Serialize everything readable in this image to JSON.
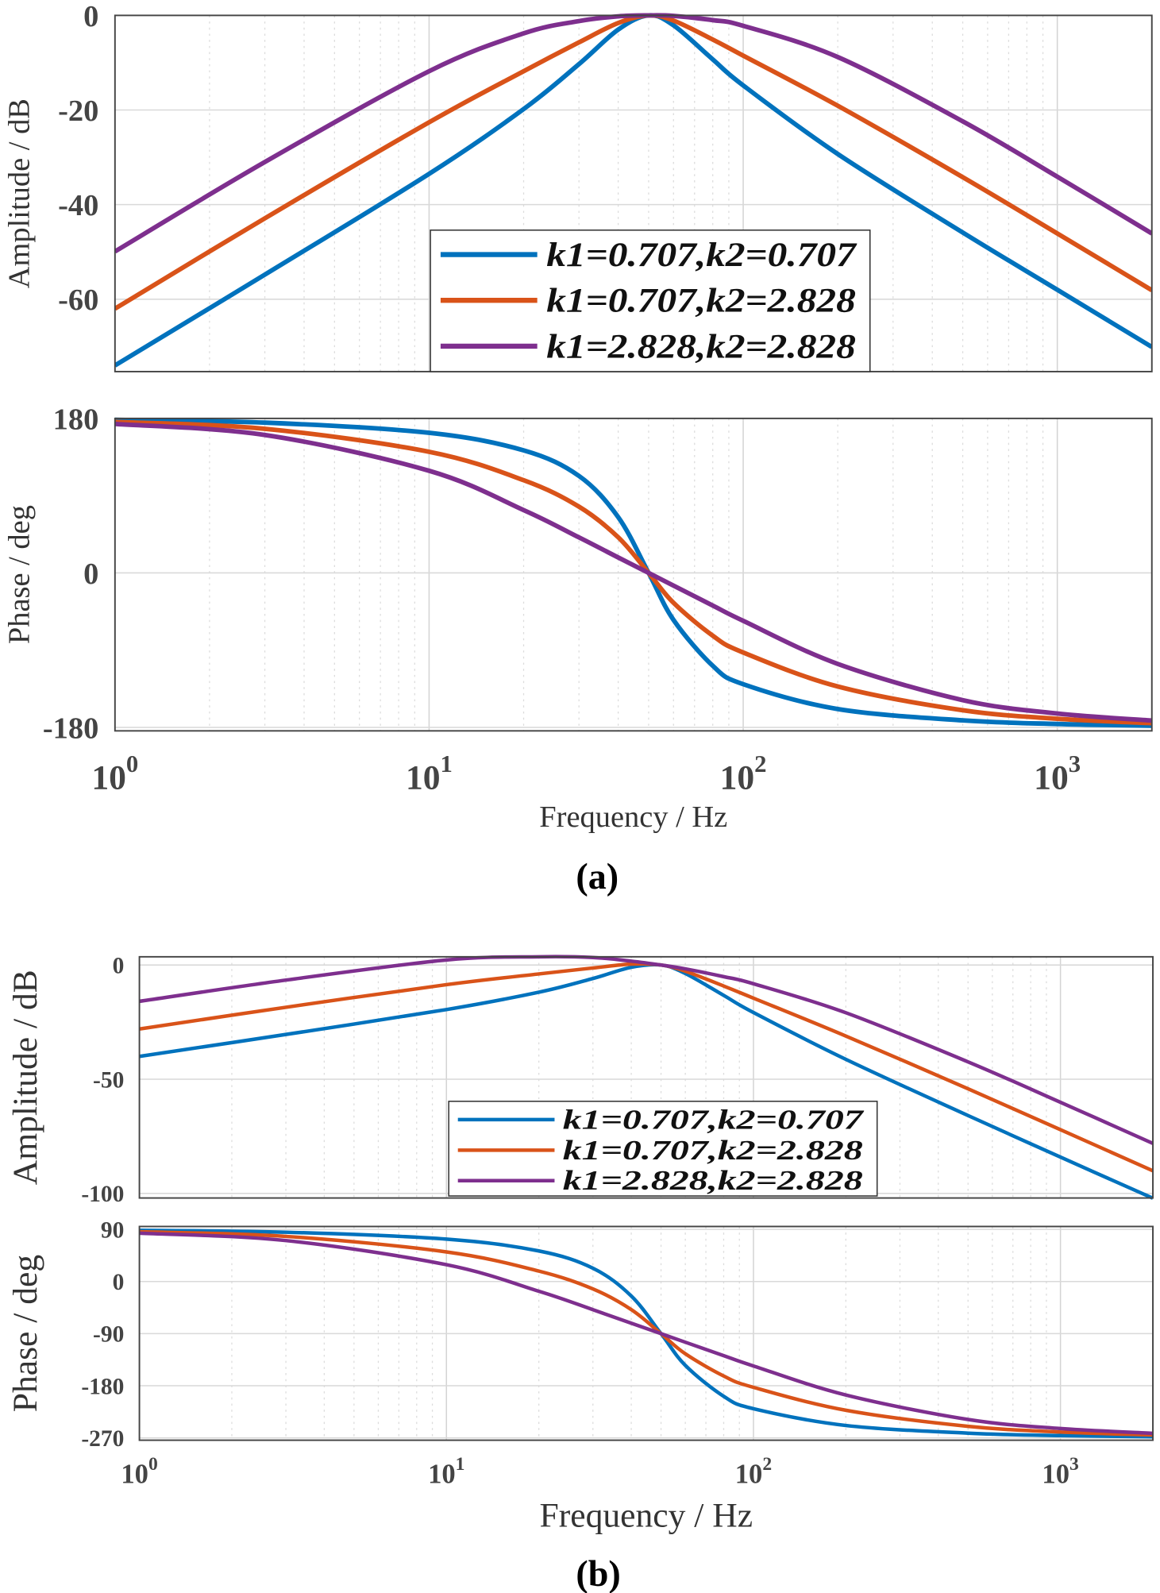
{
  "figure_labels": [
    "(a)",
    "(b)"
  ],
  "colors": {
    "series1": "#0072BD",
    "series2": "#D95319",
    "series3": "#7E2F8E",
    "grid": "#d9d9d9",
    "axis": "#333333"
  },
  "chart_data": [
    {
      "type": "line",
      "figure": "(a)",
      "xscale": "log",
      "grid": true,
      "legend": "center",
      "xlim": [
        1,
        2000
      ],
      "ylim": [
        -75.3,
        0
      ],
      "xlabel": "",
      "ylabel": "Amplitude / dB",
      "yticks": [
        0,
        -20,
        -40,
        -60
      ],
      "yticklabels": [
        "0",
        "-20",
        "-40",
        "-60"
      ],
      "x": [
        1,
        3,
        10,
        20,
        30,
        40,
        50,
        60,
        80,
        100,
        200,
        500,
        1000,
        2000
      ],
      "series": [
        {
          "name": "k1=0.707,k2=0.707",
          "color": "#0072BD",
          "values": [
            -74.0,
            -54.8,
            -33.5,
            -19.8,
            -10.3,
            -3.0,
            0,
            -2.1,
            -9.3,
            -14.8,
            -29.3,
            -45.9,
            -58.0,
            -70.1
          ]
        },
        {
          "name": "k1=0.707,k2=2.828",
          "color": "#D95319",
          "values": [
            -62.0,
            -42.9,
            -22.6,
            -11.8,
            -5.7,
            -1.6,
            0,
            -1.1,
            -5.1,
            -8.5,
            -19.1,
            -34.2,
            -46.1,
            -58.1
          ]
        },
        {
          "name": "k1=2.828,k2=2.828",
          "color": "#7E2F8E",
          "values": [
            -49.9,
            -31.0,
            -11.8,
            -3.8,
            -1.2,
            -0.2,
            0,
            -0.1,
            -1.0,
            -2.2,
            -8.8,
            -22.4,
            -34.1,
            -46.1
          ]
        }
      ]
    },
    {
      "type": "line",
      "figure": "(a)",
      "xscale": "log",
      "grid": true,
      "xlim": [
        1,
        2000
      ],
      "ylim": [
        -184,
        180
      ],
      "xlabel": "Frequency / Hz",
      "ylabel": "Phase / deg",
      "yticks": [
        180,
        0,
        -180
      ],
      "yticklabels": [
        "180",
        "0",
        "-180"
      ],
      "xticks": [
        1,
        10,
        100,
        1000
      ],
      "xticklabels": [
        "10^0",
        "10^1",
        "10^2",
        "10^3"
      ],
      "x": [
        1,
        3,
        10,
        20,
        30,
        40,
        50,
        60,
        80,
        100,
        200,
        500,
        1000,
        2000
      ],
      "series": [
        {
          "name": "k1=0.707,k2=0.707",
          "color": "#0072BD",
          "values": [
            178.4,
            175.1,
            163.2,
            142.8,
            113.0,
            65.0,
            0,
            -54.8,
            -108.2,
            -129.6,
            -158.6,
            -171.8,
            -176.0,
            -178.0
          ]
        },
        {
          "name": "k1=0.707,k2=2.828",
          "color": "#D95319",
          "values": [
            176.0,
            167.9,
            141.1,
            108.0,
            77.2,
            41.5,
            0,
            -34.8,
            -73.1,
            -92.7,
            -132.3,
            -160.0,
            -169.9,
            -175.0
          ]
        },
        {
          "name": "k1=2.828,k2=2.828",
          "color": "#7E2F8E",
          "values": [
            173.5,
            160.7,
            119.0,
            73.2,
            41.4,
            18.0,
            0,
            -14.8,
            -38.0,
            -55.8,
            -106.0,
            -148.2,
            -163.8,
            -172.0
          ]
        }
      ]
    },
    {
      "type": "line",
      "figure": "(b)",
      "xscale": "log",
      "grid": true,
      "legend": "center-right",
      "xlim": [
        1,
        2000
      ],
      "ylim": [
        -102,
        3.6
      ],
      "xlabel": "",
      "ylabel": "Amplitude / dB",
      "yticks": [
        0,
        -50,
        -100
      ],
      "yticklabels": [
        "0",
        "-50",
        "-100"
      ],
      "x": [
        1,
        3,
        10,
        20,
        30,
        40,
        50,
        60,
        80,
        100,
        200,
        500,
        1000,
        2000
      ],
      "series": [
        {
          "name": "k1=0.707,k2=0.707",
          "color": "#0072BD",
          "values": [
            -40.0,
            -30.4,
            -19.5,
            -11.9,
            -5.9,
            -1.0,
            0,
            -3.7,
            -13.3,
            -20.8,
            -41.3,
            -65.9,
            -84.1,
            -102.1
          ]
        },
        {
          "name": "k1=0.707,k2=2.828",
          "color": "#D95319",
          "values": [
            -28.0,
            -18.5,
            -8.6,
            -3.9,
            -1.3,
            0.4,
            0,
            -2.7,
            -9.2,
            -14.5,
            -31.1,
            -54.2,
            -72.1,
            -90.1
          ]
        },
        {
          "name": "k1=2.828,k2=2.828",
          "color": "#7E2F8E",
          "values": [
            -15.9,
            -6.6,
            2.2,
            3.6,
            3.3,
            1.7,
            0,
            -1.7,
            -5.1,
            -8.2,
            -20.9,
            -42.4,
            -60.1,
            -78.1
          ]
        }
      ]
    },
    {
      "type": "line",
      "figure": "(b)",
      "xscale": "log",
      "grid": true,
      "xlim": [
        1,
        2000
      ],
      "ylim": [
        -274,
        95
      ],
      "xlabel": "Frequency / Hz",
      "ylabel": "Phase / deg",
      "yticks": [
        90,
        0,
        -90,
        -180,
        -270
      ],
      "yticklabels": [
        "90",
        "0",
        "-90",
        "-180",
        "-270"
      ],
      "xticks": [
        1,
        10,
        100,
        1000
      ],
      "xticklabels": [
        "10^0",
        "10^1",
        "10^2",
        "10^3"
      ],
      "x": [
        1,
        3,
        10,
        20,
        30,
        40,
        50,
        60,
        80,
        100,
        200,
        500,
        1000,
        2000
      ],
      "series": [
        {
          "name": "k1=0.707,k2=0.707",
          "color": "#0072BD",
          "values": [
            88.4,
            85.1,
            73.2,
            52.8,
            23.0,
            -25.0,
            -90,
            -144.8,
            -198.2,
            -219.6,
            -248.6,
            -261.8,
            -266.0,
            -268.0
          ]
        },
        {
          "name": "k1=0.707,k2=2.828",
          "color": "#D95319",
          "values": [
            86.0,
            77.9,
            51.1,
            18.0,
            -12.8,
            -48.5,
            -90,
            -124.8,
            -163.1,
            -182.7,
            -222.3,
            -250.0,
            -259.9,
            -265.0
          ]
        },
        {
          "name": "k1=2.828,k2=2.828",
          "color": "#7E2F8E",
          "values": [
            83.5,
            70.7,
            29.0,
            -16.8,
            -48.6,
            -72.0,
            -90,
            -104.8,
            -128.0,
            -145.8,
            -196.0,
            -238.2,
            -253.8,
            -262.0
          ]
        }
      ]
    }
  ]
}
